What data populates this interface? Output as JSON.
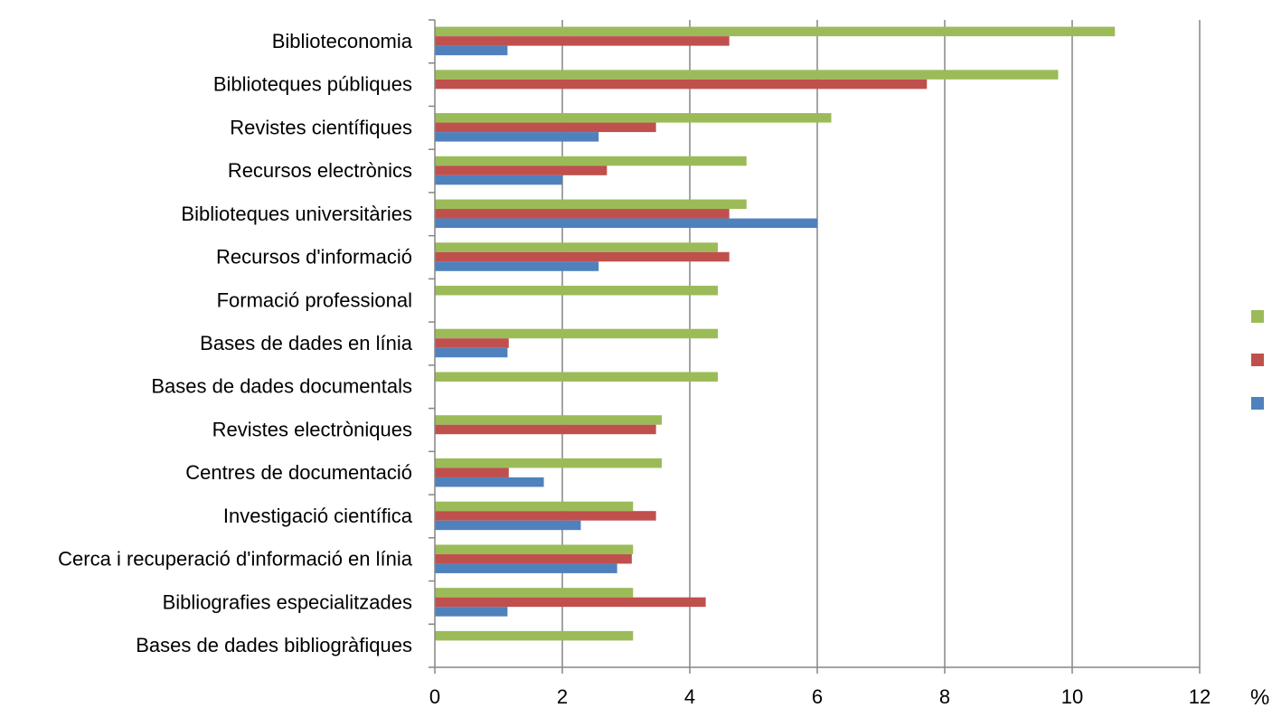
{
  "chart_data": {
    "type": "bar",
    "orientation": "horizontal",
    "categories": [
      "Biblioteconomia",
      "Biblioteques públiques",
      "Revistes científiques",
      "Recursos electrònics",
      "Biblioteques universitàries",
      "Recursos d'informació",
      "Formació professional",
      "Bases de dades en línia",
      "Bases de dades documentals",
      "Revistes electròniques",
      "Centres de documentació",
      "Investigació científica",
      "Cerca i recuperació d'informació en línia",
      "Bibliografies especialitzades",
      "Bases de dades bibliogràfiques"
    ],
    "series": [
      {
        "color": "#9bbb59",
        "values": [
          10.67,
          9.78,
          6.22,
          4.89,
          4.89,
          4.44,
          4.44,
          4.44,
          4.44,
          3.56,
          3.56,
          3.11,
          3.11,
          3.11,
          3.11
        ]
      },
      {
        "color": "#c0504d",
        "values": [
          4.62,
          7.72,
          3.47,
          2.7,
          4.62,
          4.62,
          0,
          1.16,
          0,
          3.47,
          1.16,
          3.47,
          3.09,
          4.25,
          0
        ]
      },
      {
        "color": "#4f81bd",
        "values": [
          1.14,
          0,
          2.57,
          2.0,
          6.0,
          2.57,
          0,
          1.14,
          0,
          0,
          1.71,
          2.29,
          2.86,
          1.14,
          0
        ]
      }
    ],
    "xticks": [
      "0",
      "2",
      "4",
      "6",
      "8",
      "10",
      "12"
    ],
    "xlim": [
      0,
      12
    ],
    "xunit": "%",
    "grid": true,
    "legend": "right"
  }
}
